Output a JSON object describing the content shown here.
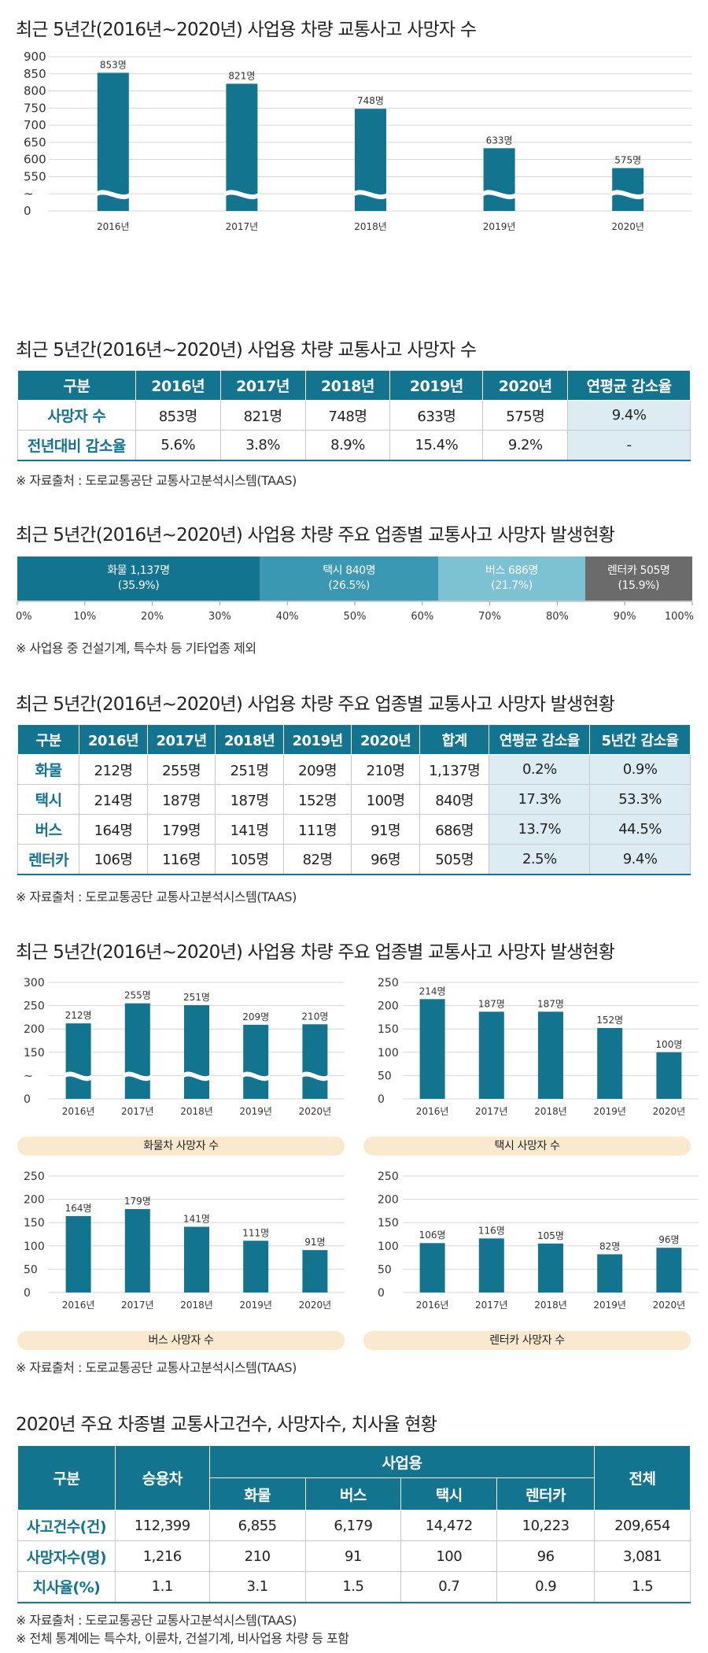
{
  "section1": {
    "title": "최근 5년간(2016년~2020년) 사업용 차량 교통사고 사망자 수"
  },
  "chart_data": [
    {
      "id": "chart1",
      "type": "bar",
      "title": "최근 5년간(2016년~2020년) 사업용 차량 교통사고 사망자 수",
      "categories": [
        "2016년",
        "2017년",
        "2018년",
        "2019년",
        "2020년"
      ],
      "values": [
        853,
        821,
        748,
        633,
        575
      ],
      "data_labels": [
        "853명",
        "821명",
        "748명",
        "633명",
        "575명"
      ],
      "yticks": [
        "900",
        "850",
        "800",
        "750",
        "700",
        "650",
        "600",
        "550",
        "~",
        "0"
      ],
      "ylim": [
        500,
        900
      ],
      "axis_break": true
    },
    {
      "id": "chart2",
      "type": "bar",
      "stacked": true,
      "title": "최근 5년간(2016년~2020년) 사업용 차량 주요 업종별 교통사고 사망자 발생현황",
      "segments": [
        {
          "name": "화물",
          "value": 1137,
          "percent": 35.9,
          "label": "화물 1,137명",
          "sub": "(35.9%)",
          "color": "#12748f"
        },
        {
          "name": "택시",
          "value": 840,
          "percent": 26.5,
          "label": "택시 840명",
          "sub": "(26.5%)",
          "color": "#3b98b2"
        },
        {
          "name": "버스",
          "value": 686,
          "percent": 21.7,
          "label": "버스 686명",
          "sub": "(21.7%)",
          "color": "#7cc2d3"
        },
        {
          "name": "렌터카",
          "value": 505,
          "percent": 15.9,
          "label": "렌터카 505명",
          "sub": "(15.9%)",
          "color": "#6b6b6b"
        }
      ],
      "xticks": [
        "0%",
        "10%",
        "20%",
        "30%",
        "40%",
        "50%",
        "60%",
        "70%",
        "80%",
        "90%",
        "100%"
      ]
    },
    {
      "id": "chart3a",
      "type": "bar",
      "title": "화물차 사망자 수",
      "categories": [
        "2016년",
        "2017년",
        "2018년",
        "2019년",
        "2020년"
      ],
      "values": [
        212,
        255,
        251,
        209,
        210
      ],
      "data_labels": [
        "212명",
        "255명",
        "251명",
        "209명",
        "210명"
      ],
      "yticks": [
        "300",
        "250",
        "200",
        "150",
        "~",
        "0"
      ],
      "ylim": [
        100,
        300
      ],
      "axis_break": true
    },
    {
      "id": "chart3b",
      "type": "bar",
      "title": "택시 사망자 수",
      "categories": [
        "2016년",
        "2017년",
        "2018년",
        "2019년",
        "2020년"
      ],
      "values": [
        214,
        187,
        187,
        152,
        100
      ],
      "data_labels": [
        "214명",
        "187명",
        "187명",
        "152명",
        "100명"
      ],
      "yticks": [
        "250",
        "200",
        "150",
        "100",
        "50",
        "0"
      ],
      "ylim": [
        0,
        250
      ],
      "axis_break": false
    },
    {
      "id": "chart3c",
      "type": "bar",
      "title": "버스 사망자 수",
      "categories": [
        "2016년",
        "2017년",
        "2018년",
        "2019년",
        "2020년"
      ],
      "values": [
        164,
        179,
        141,
        111,
        91
      ],
      "data_labels": [
        "164명",
        "179명",
        "141명",
        "111명",
        "91명"
      ],
      "yticks": [
        "250",
        "200",
        "150",
        "100",
        "50",
        "0"
      ],
      "ylim": [
        0,
        250
      ],
      "axis_break": false
    },
    {
      "id": "chart3d",
      "type": "bar",
      "title": "렌터카 사망자 수",
      "categories": [
        "2016년",
        "2017년",
        "2018년",
        "2019년",
        "2020년"
      ],
      "values": [
        106,
        116,
        105,
        82,
        96
      ],
      "data_labels": [
        "106명",
        "116명",
        "105명",
        "82명",
        "96명"
      ],
      "yticks": [
        "250",
        "200",
        "150",
        "100",
        "50",
        "0"
      ],
      "ylim": [
        0,
        250
      ],
      "axis_break": false
    }
  ],
  "table1": {
    "title": "최근 5년간(2016년~2020년) 사업용 차량 교통사고 사망자 수",
    "headers": [
      "구분",
      "2016년",
      "2017년",
      "2018년",
      "2019년",
      "2020년",
      "연평균 감소율"
    ],
    "rows": [
      [
        "사망자 수",
        "853명",
        "821명",
        "748명",
        "633명",
        "575명",
        "9.4%"
      ],
      [
        "전년대비 감소율",
        "5.6%",
        "3.8%",
        "8.9%",
        "15.4%",
        "9.2%",
        "-"
      ]
    ],
    "note": "※ 자료출처 : 도로교통공단 교통사고분석시스템(TAAS)"
  },
  "section2": {
    "title": "최근 5년간(2016년~2020년) 사업용 차량 주요 업종별 교통사고 사망자 발생현황",
    "note": "※ 사업용 중 건설기계, 특수차 등 기타업종 제외"
  },
  "table2": {
    "title": "최근 5년간(2016년~2020년) 사업용 차량 주요 업종별 교통사고 사망자 발생현황",
    "headers": [
      "구분",
      "2016년",
      "2017년",
      "2018년",
      "2019년",
      "2020년",
      "합계",
      "연평균 감소율",
      "5년간 감소율"
    ],
    "rows": [
      [
        "화물",
        "212명",
        "255명",
        "251명",
        "209명",
        "210명",
        "1,137명",
        "0.2%",
        "0.9%"
      ],
      [
        "택시",
        "214명",
        "187명",
        "187명",
        "152명",
        "100명",
        "840명",
        "17.3%",
        "53.3%"
      ],
      [
        "버스",
        "164명",
        "179명",
        "141명",
        "111명",
        "91명",
        "686명",
        "13.7%",
        "44.5%"
      ],
      [
        "렌터카",
        "106명",
        "116명",
        "105명",
        "82명",
        "96명",
        "505명",
        "2.5%",
        "9.4%"
      ]
    ],
    "note": "※ 자료출처 : 도로교통공단 교통사고분석시스템(TAAS)"
  },
  "section3": {
    "title": "최근 5년간(2016년~2020년) 사업용 차량 주요 업종별 교통사고 사망자 발생현황",
    "note": "※ 자료출처 : 도로교통공단 교통사고분석시스템(TAAS)"
  },
  "table3": {
    "title": "2020년 주요 차종별 교통사고건수, 사망자수, 치사율 현황",
    "h_gubun": "구분",
    "h_car": "승용차",
    "h_biz": "사업용",
    "h_total": "전체",
    "sub_headers": [
      "화물",
      "버스",
      "택시",
      "렌터카"
    ],
    "rows": [
      [
        "사고건수(건)",
        "112,399",
        "6,855",
        "6,179",
        "14,472",
        "10,223",
        "209,654"
      ],
      [
        "사망자수(명)",
        "1,216",
        "210",
        "91",
        "100",
        "96",
        "3,081"
      ],
      [
        "치사율(%)",
        "1.1",
        "3.1",
        "1.5",
        "0.7",
        "0.9",
        "1.5"
      ]
    ],
    "note1": "※ 자료출처 : 도로교통공단 교통사고분석시스템(TAAS)",
    "note2": "※ 전체 통계에는 특수차, 이륜차, 건설기계, 비사업용 차량 등 포함"
  },
  "colors": {
    "bar": "#12748f",
    "highlight": "#dcecf2",
    "pill": "#fbe9cf",
    "grid": "#d6d6d6"
  }
}
